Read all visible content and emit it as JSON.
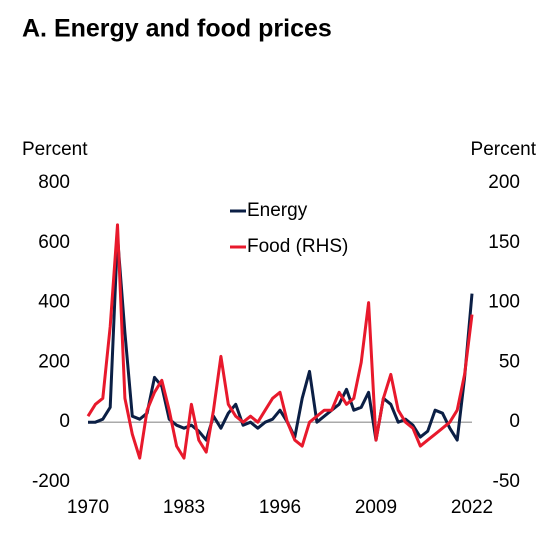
{
  "chart_data": {
    "type": "line",
    "title": "A. Energy and food prices",
    "y_label": "Percent",
    "y2_label": "Percent",
    "x": [
      1970,
      1971,
      1972,
      1973,
      1974,
      1975,
      1976,
      1977,
      1978,
      1979,
      1980,
      1981,
      1982,
      1983,
      1984,
      1985,
      1986,
      1987,
      1988,
      1989,
      1990,
      1991,
      1992,
      1993,
      1994,
      1995,
      1996,
      1997,
      1998,
      1999,
      2000,
      2001,
      2002,
      2003,
      2004,
      2005,
      2006,
      2007,
      2008,
      2009,
      2010,
      2011,
      2012,
      2013,
      2014,
      2015,
      2016,
      2017,
      2018,
      2019,
      2020,
      2021,
      2022
    ],
    "series": [
      {
        "name": "Energy",
        "color": "#0b1f45",
        "axis": "y",
        "values": [
          0,
          0,
          10,
          50,
          620,
          300,
          20,
          10,
          30,
          150,
          120,
          10,
          -10,
          -20,
          -10,
          -30,
          -60,
          20,
          -20,
          30,
          60,
          -10,
          0,
          -20,
          0,
          10,
          40,
          0,
          -50,
          80,
          170,
          0,
          20,
          40,
          60,
          110,
          40,
          50,
          100,
          -60,
          80,
          60,
          0,
          10,
          -10,
          -50,
          -30,
          40,
          30,
          -20,
          -60,
          150,
          430
        ]
      },
      {
        "name": "Food (RHS)",
        "color": "#e8192c",
        "axis": "y2",
        "values": [
          5,
          15,
          20,
          80,
          165,
          20,
          -10,
          -30,
          10,
          25,
          35,
          10,
          -20,
          -30,
          15,
          -15,
          -25,
          10,
          55,
          15,
          5,
          0,
          5,
          0,
          10,
          20,
          25,
          0,
          -15,
          -20,
          0,
          5,
          10,
          10,
          25,
          15,
          20,
          50,
          100,
          -15,
          20,
          40,
          10,
          0,
          -5,
          -20,
          -15,
          -10,
          -5,
          0,
          10,
          40,
          90
        ]
      }
    ],
    "xlim": [
      1970,
      2022
    ],
    "xticks": [
      1970,
      1983,
      1996,
      2009,
      2022
    ],
    "ylim": [
      -200,
      800
    ],
    "yticks": [
      -200,
      0,
      200,
      400,
      600,
      800
    ],
    "y2lim": [
      -50,
      200
    ],
    "y2ticks": [
      -50,
      0,
      50,
      100,
      150,
      200
    ]
  }
}
